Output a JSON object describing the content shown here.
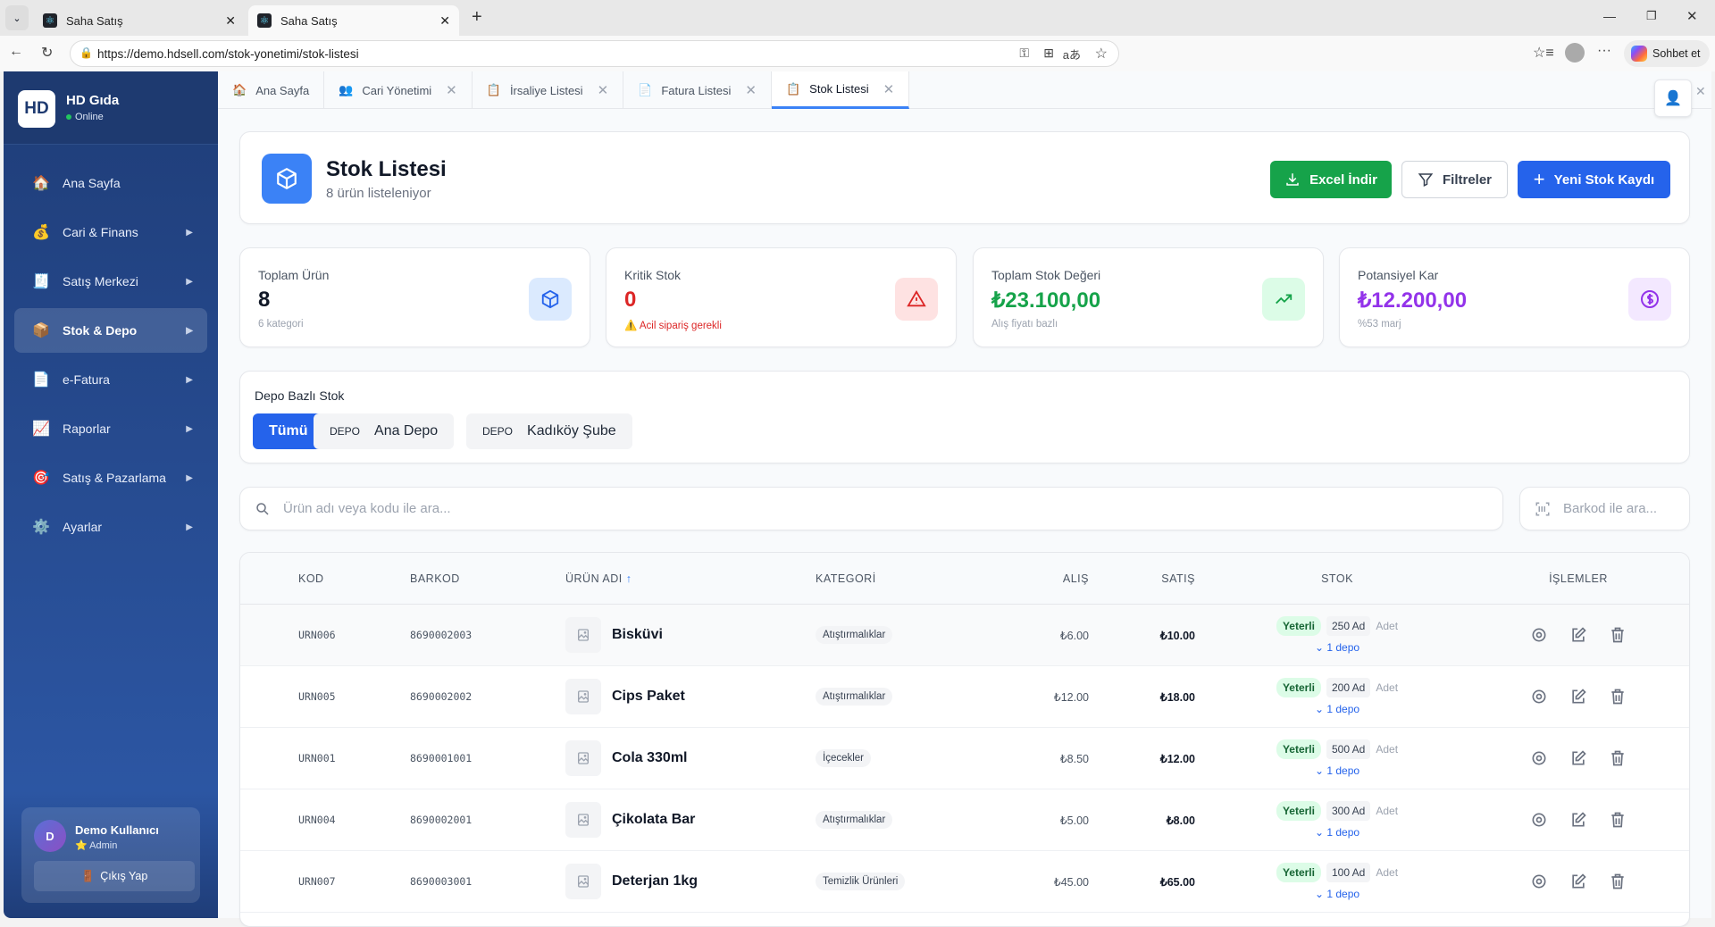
{
  "browser": {
    "tabs": [
      {
        "title": "Saha Satış",
        "active": false
      },
      {
        "title": "Saha Satış",
        "active": true
      }
    ],
    "url": "https://demo.hdsell.com/stok-yonetimi/stok-listesi",
    "chat_label": "Sohbet et"
  },
  "sidebar": {
    "logo": "HD",
    "brand": "HD Gıda",
    "status": "Online",
    "items": [
      {
        "label": "Ana Sayfa",
        "icon": "house-icon",
        "emoji": "🏠",
        "submenu": false
      },
      {
        "label": "Cari & Finans",
        "icon": "money-bag-icon",
        "emoji": "💰",
        "submenu": true
      },
      {
        "label": "Satış Merkezi",
        "icon": "receipt-icon",
        "emoji": "🧾",
        "submenu": true
      },
      {
        "label": "Stok & Depo",
        "icon": "package-icon",
        "emoji": "📦",
        "submenu": true,
        "active": true
      },
      {
        "label": "e-Fatura",
        "icon": "document-icon",
        "emoji": "📄",
        "submenu": true
      },
      {
        "label": "Raporlar",
        "icon": "chart-icon",
        "emoji": "📈",
        "submenu": true
      },
      {
        "label": "Satış & Pazarlama",
        "icon": "target-icon",
        "emoji": "🎯",
        "submenu": true
      },
      {
        "label": "Ayarlar",
        "icon": "gear-icon",
        "emoji": "⚙️",
        "submenu": true
      }
    ],
    "user": {
      "initial": "D",
      "name": "Demo Kullanıcı",
      "role": "Admin",
      "logout": "Çıkış Yap"
    }
  },
  "app_tabs": [
    {
      "label": "Ana Sayfa",
      "emoji": "🏠",
      "closable": false
    },
    {
      "label": "Cari Yönetimi",
      "emoji": "👥",
      "closable": true
    },
    {
      "label": "İrsaliye Listesi",
      "emoji": "📋",
      "closable": true
    },
    {
      "label": "Fatura Listesi",
      "emoji": "📄",
      "closable": true
    },
    {
      "label": "Stok Listesi",
      "emoji": "📋",
      "closable": true,
      "active": true
    }
  ],
  "header": {
    "title": "Stok Listesi",
    "subtitle": "8 ürün listeleniyor",
    "excel": "Excel İndir",
    "filters": "Filtreler",
    "new": "Yeni Stok Kaydı"
  },
  "stats": [
    {
      "label": "Toplam Ürün",
      "value": "8",
      "sub": "6 kategori",
      "color": "#111827",
      "icon_bg": "#dbeafe"
    },
    {
      "label": "Kritik Stok",
      "value": "0",
      "sub": "Acil sipariş gerekli",
      "color": "#dc2626",
      "icon_bg": "#fee2e2"
    },
    {
      "label": "Toplam Stok Değeri",
      "value": "₺23.100,00",
      "sub": "Alış fiyatı bazlı",
      "color": "#16a34a",
      "icon_bg": "#dcfce7"
    },
    {
      "label": "Potansiyel Kar",
      "value": "₺12.200,00",
      "sub": "%53 marj",
      "color": "#9333ea",
      "icon_bg": "#f3e8ff"
    }
  ],
  "depo": {
    "title": "Depo Bazlı Stok",
    "all": "Tümü",
    "tag": "DEPO",
    "warehouses": [
      "Ana Depo",
      "Kadıköy Şube"
    ]
  },
  "search": {
    "placeholder": "Ürün adı veya kodu ile ara...",
    "barcode_placeholder": "Barkod ile ara..."
  },
  "table": {
    "columns": [
      "KOD",
      "BARKOD",
      "ÜRÜN ADI",
      "KATEGORİ",
      "ALIŞ",
      "SATIŞ",
      "STOK",
      "İŞLEMLER"
    ],
    "sort_indicator": "↑",
    "rows": [
      {
        "code": "URN006",
        "barcode": "8690002003",
        "name": "Bisküvi",
        "category": "Atıştırmalıklar",
        "buy": "₺6.00",
        "sell": "₺10.00",
        "status": "Yeterli",
        "qty": "250 Ad",
        "unit": "Adet",
        "depots": "1 depo"
      },
      {
        "code": "URN005",
        "barcode": "8690002002",
        "name": "Cips Paket",
        "category": "Atıştırmalıklar",
        "buy": "₺12.00",
        "sell": "₺18.00",
        "status": "Yeterli",
        "qty": "200 Ad",
        "unit": "Adet",
        "depots": "1 depo"
      },
      {
        "code": "URN001",
        "barcode": "8690001001",
        "name": "Cola 330ml",
        "category": "İçecekler",
        "buy": "₺8.50",
        "sell": "₺12.00",
        "status": "Yeterli",
        "qty": "500 Ad",
        "unit": "Adet",
        "depots": "1 depo"
      },
      {
        "code": "URN004",
        "barcode": "8690002001",
        "name": "Çikolata Bar",
        "category": "Atıştırmalıklar",
        "buy": "₺5.00",
        "sell": "₺8.00",
        "status": "Yeterli",
        "qty": "300 Ad",
        "unit": "Adet",
        "depots": "1 depo"
      },
      {
        "code": "URN007",
        "barcode": "8690003001",
        "name": "Deterjan 1kg",
        "category": "Temizlik Ürünleri",
        "buy": "₺45.00",
        "sell": "₺65.00",
        "status": "Yeterli",
        "qty": "100 Ad",
        "unit": "Adet",
        "depots": "1 depo"
      }
    ]
  }
}
